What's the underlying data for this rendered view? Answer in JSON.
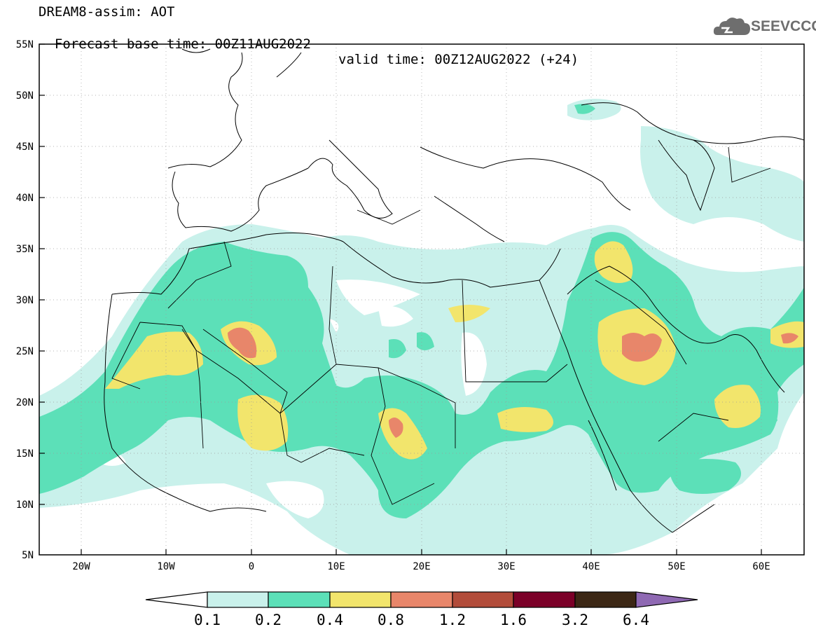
{
  "header": {
    "line1": "DREAM8-assim: AOT",
    "base_time": "Forecast base time: 00Z11AUG2022",
    "valid_time": "valid time: 00Z12AUG2022 (+24)"
  },
  "logo": {
    "text": "SEEVCCC",
    "icon": "cloud-icon"
  },
  "map": {
    "lat_labels": [
      "55N",
      "50N",
      "45N",
      "40N",
      "35N",
      "30N",
      "25N",
      "20N",
      "15N",
      "10N",
      "5N"
    ],
    "lon_labels": [
      "20W",
      "10W",
      "0",
      "10E",
      "20E",
      "30E",
      "40E",
      "50E",
      "60E"
    ],
    "lat_range": [
      5,
      55
    ],
    "lon_range": [
      -25,
      65
    ]
  },
  "colorbar": {
    "labels": [
      "0.1",
      "0.2",
      "0.4",
      "0.8",
      "1.2",
      "1.6",
      "3.2",
      "6.4"
    ],
    "colors": [
      "#ffffff",
      "#c9f1eb",
      "#5ce0b8",
      "#f2e56c",
      "#e8866a",
      "#b24c3a",
      "#7b0028",
      "#3c2715",
      "#8f69b3"
    ]
  },
  "colors": {
    "c1": "#c9f1eb",
    "c2": "#5ce0b8",
    "c3": "#f2e56c",
    "c4": "#e8866a",
    "border": "#000000"
  }
}
